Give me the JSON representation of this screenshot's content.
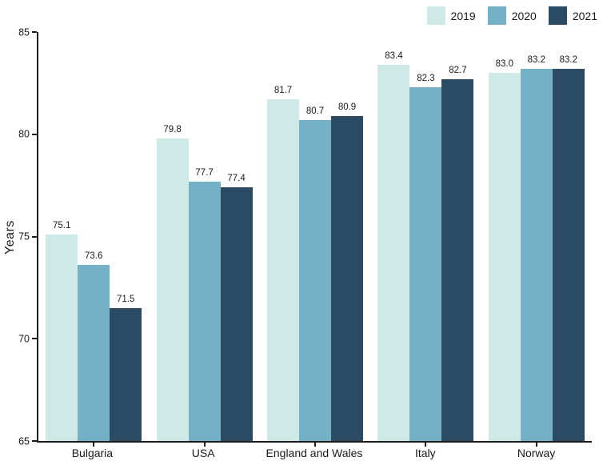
{
  "chart_data": {
    "type": "bar",
    "title": "",
    "xlabel": "",
    "ylabel": "Years",
    "ylim": [
      65,
      85
    ],
    "yticks": [
      65,
      70,
      75,
      80,
      85
    ],
    "grid": false,
    "legend_position": "top-right",
    "axis_color": "#1c1c1c",
    "categories": [
      "Bulgaria",
      "USA",
      "England and Wales",
      "Italy",
      "Norway"
    ],
    "series": [
      {
        "name": "2019",
        "color": "#cfe9e6",
        "values": [
          75.1,
          79.8,
          81.7,
          83.4,
          83.0
        ],
        "labels": [
          "75.1",
          "79.8",
          "81.7",
          "83.4",
          "83.0"
        ]
      },
      {
        "name": "2020",
        "color": "#74b0c6",
        "values": [
          73.6,
          77.7,
          80.7,
          82.3,
          83.2
        ],
        "labels": [
          "73.6",
          "77.7",
          "80.7",
          "82.3",
          "83.2"
        ]
      },
      {
        "name": "2021",
        "color": "#2a4b63",
        "values": [
          71.5,
          77.4,
          80.9,
          82.7,
          83.2
        ],
        "labels": [
          "71.5",
          "77.4",
          "80.9",
          "82.7",
          "83.2"
        ]
      }
    ]
  }
}
